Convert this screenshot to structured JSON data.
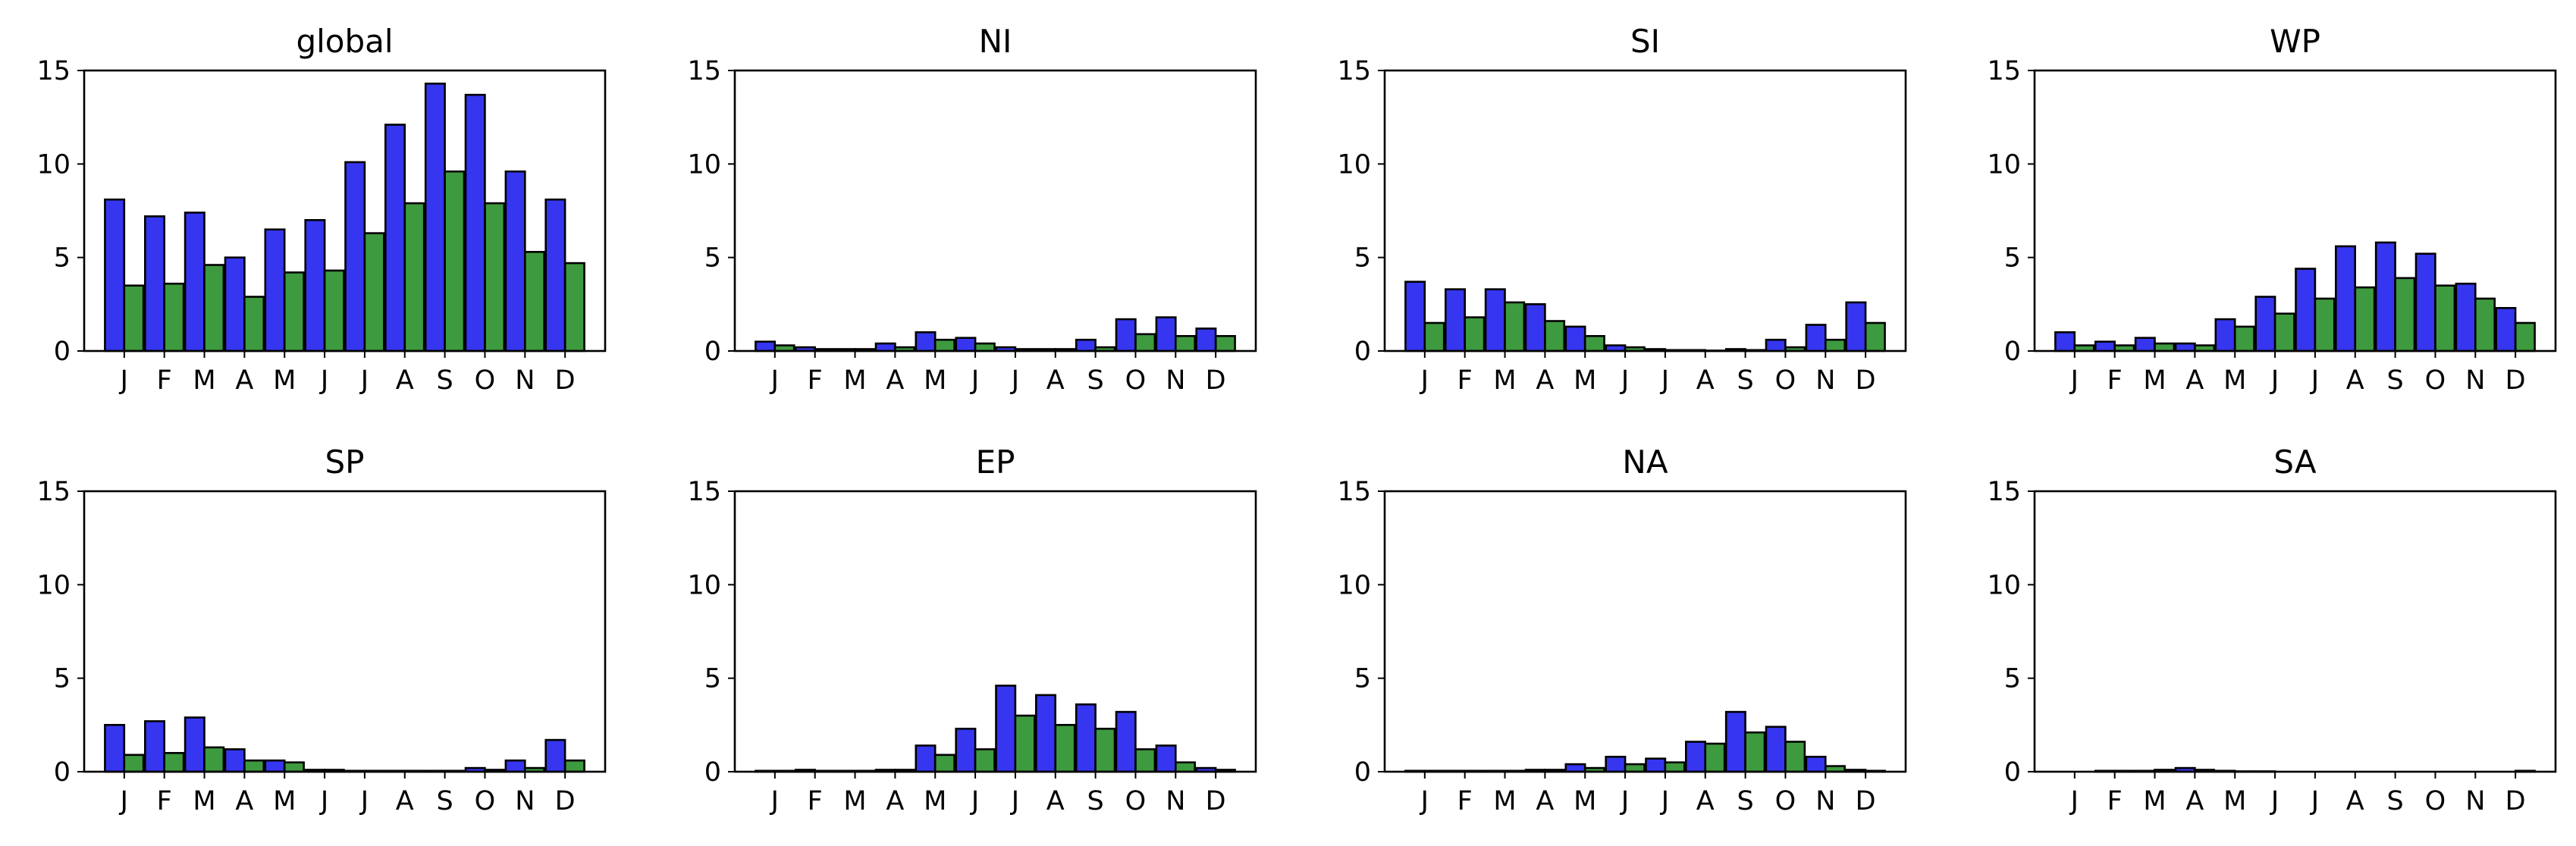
{
  "chart_data": {
    "type": "bar",
    "layout": "2x4 small multiples",
    "categories": [
      "J",
      "F",
      "M",
      "A",
      "M",
      "J",
      "J",
      "A",
      "S",
      "O",
      "N",
      "D"
    ],
    "yticks": [
      "0",
      "5",
      "10",
      "15"
    ],
    "ylim": [
      0,
      15
    ],
    "colors": {
      "series_1": "#3636F0",
      "series_2": "#3E9A3E",
      "edge": "#000000"
    },
    "panels": [
      {
        "title": "global",
        "series": [
          {
            "values": [
              8.1,
              7.2,
              7.4,
              5.0,
              6.5,
              7.0,
              10.1,
              12.1,
              14.3,
              13.7,
              9.6,
              8.1
            ]
          },
          {
            "values": [
              3.5,
              3.6,
              4.6,
              2.9,
              4.2,
              4.3,
              6.3,
              7.9,
              9.6,
              7.9,
              5.3,
              4.7
            ]
          }
        ]
      },
      {
        "title": "NI",
        "series": [
          {
            "values": [
              0.5,
              0.2,
              0.1,
              0.4,
              1.0,
              0.7,
              0.2,
              0.1,
              0.6,
              1.7,
              1.8,
              1.2
            ]
          },
          {
            "values": [
              0.3,
              0.1,
              0.1,
              0.2,
              0.6,
              0.4,
              0.1,
              0.1,
              0.2,
              0.9,
              0.8,
              0.8
            ]
          }
        ]
      },
      {
        "title": "SI",
        "series": [
          {
            "values": [
              3.7,
              3.3,
              3.3,
              2.5,
              1.3,
              0.3,
              0.1,
              0.05,
              0.1,
              0.6,
              1.4,
              2.6
            ]
          },
          {
            "values": [
              1.5,
              1.8,
              2.6,
              1.6,
              0.8,
              0.2,
              0.05,
              0.02,
              0.05,
              0.2,
              0.6,
              1.5
            ]
          }
        ]
      },
      {
        "title": "WP",
        "series": [
          {
            "values": [
              1.0,
              0.5,
              0.7,
              0.4,
              1.7,
              2.9,
              4.4,
              5.6,
              5.8,
              5.2,
              3.6,
              2.3
            ]
          },
          {
            "values": [
              0.3,
              0.3,
              0.4,
              0.3,
              1.3,
              2.0,
              2.8,
              3.4,
              3.9,
              3.5,
              2.8,
              1.5
            ]
          }
        ]
      },
      {
        "title": "SP",
        "series": [
          {
            "values": [
              2.5,
              2.7,
              2.9,
              1.2,
              0.6,
              0.1,
              0.05,
              0.05,
              0.05,
              0.2,
              0.6,
              1.7
            ]
          },
          {
            "values": [
              0.9,
              1.0,
              1.3,
              0.6,
              0.5,
              0.1,
              0.05,
              0.05,
              0.05,
              0.1,
              0.2,
              0.6
            ]
          }
        ]
      },
      {
        "title": "EP",
        "series": [
          {
            "values": [
              0.05,
              0.1,
              0.05,
              0.1,
              1.4,
              2.3,
              4.6,
              4.1,
              3.6,
              3.2,
              1.4,
              0.2
            ]
          },
          {
            "values": [
              0.05,
              0.05,
              0.05,
              0.1,
              0.9,
              1.2,
              3.0,
              2.5,
              2.3,
              1.2,
              0.5,
              0.1
            ]
          }
        ]
      },
      {
        "title": "NA",
        "series": [
          {
            "values": [
              0.05,
              0.05,
              0.05,
              0.1,
              0.4,
              0.8,
              0.7,
              1.6,
              3.2,
              2.4,
              0.8,
              0.1
            ]
          },
          {
            "values": [
              0.05,
              0.05,
              0.05,
              0.1,
              0.2,
              0.4,
              0.5,
              1.5,
              2.1,
              1.6,
              0.3,
              0.05
            ]
          }
        ]
      },
      {
        "title": "SA",
        "series": [
          {
            "values": [
              0.0,
              0.05,
              0.05,
              0.2,
              0.05,
              0.02,
              0.0,
              0.0,
              0.0,
              0.0,
              0.0,
              0.0
            ]
          },
          {
            "values": [
              0.0,
              0.05,
              0.1,
              0.1,
              0.02,
              0.0,
              0.0,
              0.0,
              0.0,
              0.0,
              0.0,
              0.05
            ]
          }
        ]
      }
    ]
  }
}
